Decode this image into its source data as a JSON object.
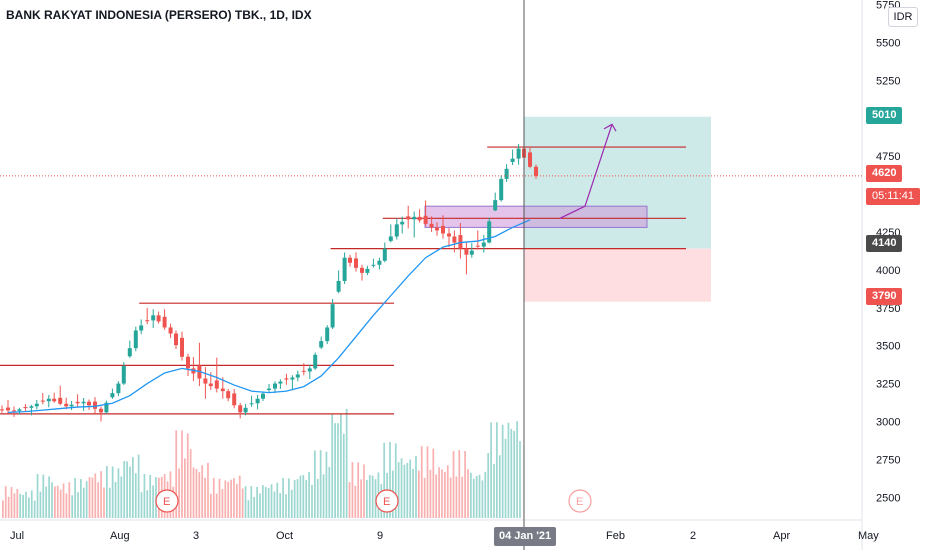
{
  "title": "BANK RAKYAT INDONESIA (PERSERO) TBK., 1D, IDX",
  "currency": "IDR",
  "colors": {
    "up": "#26a69a",
    "down": "#ef5350",
    "ma": "#2196f3",
    "level": "#c62828",
    "target_zone": "#b2dfdb",
    "stop_zone": "#ffcdd2",
    "box": "#ce93d8",
    "arrow": "#9c27b0"
  },
  "tags": {
    "target": "5010",
    "last": "4620",
    "countdown": "05:11:41",
    "entry": "4140",
    "stop": "3790",
    "cursor_date": "04 Jan '21"
  },
  "events_label": "E",
  "chart_data": {
    "type": "candlestick",
    "y_axis": {
      "ticks": [
        "5750",
        "5500",
        "5250",
        "4750",
        "4250",
        "4000",
        "3750",
        "3500",
        "3250",
        "3000",
        "2750",
        "2500"
      ],
      "ylim": [
        2350,
        5780
      ]
    },
    "x_axis": {
      "ticks": [
        "Jul",
        "Aug",
        "3",
        "Oct",
        "9",
        "Feb",
        "2",
        "Apr",
        "May"
      ]
    },
    "ohlc_weekly_approx": [
      {
        "o": 3080,
        "h": 3130,
        "l": 3030,
        "c": 3070
      },
      {
        "o": 3070,
        "h": 3120,
        "l": 3020,
        "c": 3100
      },
      {
        "o": 3100,
        "h": 3200,
        "l": 3060,
        "c": 3150
      },
      {
        "o": 3150,
        "h": 3230,
        "l": 3080,
        "c": 3100
      },
      {
        "o": 3100,
        "h": 3180,
        "l": 3050,
        "c": 3130
      },
      {
        "o": 3130,
        "h": 3160,
        "l": 3000,
        "c": 3060
      },
      {
        "o": 3060,
        "h": 3280,
        "l": 3040,
        "c": 3250
      },
      {
        "o": 3250,
        "h": 3650,
        "l": 3230,
        "c": 3600
      },
      {
        "o": 3600,
        "h": 3780,
        "l": 3550,
        "c": 3700
      },
      {
        "o": 3700,
        "h": 3750,
        "l": 3550,
        "c": 3580
      },
      {
        "o": 3580,
        "h": 3620,
        "l": 3300,
        "c": 3350
      },
      {
        "o": 3350,
        "h": 3500,
        "l": 3150,
        "c": 3250
      },
      {
        "o": 3250,
        "h": 3400,
        "l": 3150,
        "c": 3200
      },
      {
        "o": 3200,
        "h": 3230,
        "l": 3020,
        "c": 3060
      },
      {
        "o": 3060,
        "h": 3200,
        "l": 3020,
        "c": 3150
      },
      {
        "o": 3150,
        "h": 3280,
        "l": 3120,
        "c": 3250
      },
      {
        "o": 3250,
        "h": 3320,
        "l": 3180,
        "c": 3290
      },
      {
        "o": 3290,
        "h": 3400,
        "l": 3240,
        "c": 3350
      },
      {
        "o": 3350,
        "h": 3650,
        "l": 3330,
        "c": 3620
      },
      {
        "o": 3620,
        "h": 4150,
        "l": 3600,
        "c": 4080
      },
      {
        "o": 4080,
        "h": 4120,
        "l": 3930,
        "c": 3980
      },
      {
        "o": 3980,
        "h": 4100,
        "l": 3950,
        "c": 4060
      },
      {
        "o": 4060,
        "h": 4380,
        "l": 4040,
        "c": 4300
      },
      {
        "o": 4300,
        "h": 4420,
        "l": 4180,
        "c": 4350
      },
      {
        "o": 4350,
        "h": 4450,
        "l": 4250,
        "c": 4280
      },
      {
        "o": 4280,
        "h": 4350,
        "l": 4150,
        "c": 4220
      },
      {
        "o": 4220,
        "h": 4300,
        "l": 3970,
        "c": 4100
      },
      {
        "o": 4100,
        "h": 4280,
        "l": 4060,
        "c": 4180
      },
      {
        "o": 4180,
        "h": 4650,
        "l": 4170,
        "c": 4600
      },
      {
        "o": 4600,
        "h": 4860,
        "l": 4560,
        "c": 4800
      },
      {
        "o": 4800,
        "h": 4830,
        "l": 4600,
        "c": 4620
      }
    ],
    "volume_weekly_approx": [
      {
        "v": 40,
        "up": 0
      },
      {
        "v": 35,
        "up": 1
      },
      {
        "v": 55,
        "up": 1
      },
      {
        "v": 45,
        "up": 0
      },
      {
        "v": 50,
        "up": 1
      },
      {
        "v": 60,
        "up": 0
      },
      {
        "v": 65,
        "up": 1
      },
      {
        "v": 80,
        "up": 1
      },
      {
        "v": 55,
        "up": 1
      },
      {
        "v": 60,
        "up": 0
      },
      {
        "v": 110,
        "up": 0
      },
      {
        "v": 70,
        "up": 0
      },
      {
        "v": 50,
        "up": 0
      },
      {
        "v": 55,
        "up": 0
      },
      {
        "v": 40,
        "up": 1
      },
      {
        "v": 45,
        "up": 1
      },
      {
        "v": 50,
        "up": 1
      },
      {
        "v": 60,
        "up": 1
      },
      {
        "v": 85,
        "up": 1
      },
      {
        "v": 140,
        "up": 1
      },
      {
        "v": 70,
        "up": 0
      },
      {
        "v": 60,
        "up": 1
      },
      {
        "v": 95,
        "up": 1
      },
      {
        "v": 80,
        "up": 1
      },
      {
        "v": 90,
        "up": 0
      },
      {
        "v": 70,
        "up": 0
      },
      {
        "v": 85,
        "up": 0
      },
      {
        "v": 60,
        "up": 1
      },
      {
        "v": 120,
        "up": 1
      },
      {
        "v": 130,
        "up": 1
      },
      {
        "v": 60,
        "up": 0
      }
    ],
    "moving_average_approx": [
      3060,
      3065,
      3075,
      3085,
      3095,
      3100,
      3120,
      3170,
      3250,
      3320,
      3350,
      3330,
      3290,
      3240,
      3200,
      3190,
      3200,
      3230,
      3300,
      3420,
      3560,
      3700,
      3830,
      3960,
      4080,
      4150,
      4180,
      4190,
      4220,
      4280,
      4330
    ],
    "levels": [
      {
        "price": 3050,
        "from": 0,
        "to": 19
      },
      {
        "price": 3370,
        "from": 0,
        "to": 19
      },
      {
        "price": 3780,
        "from": 8,
        "to": 19
      },
      {
        "price": 4140,
        "from": 19,
        "to": 34
      },
      {
        "price": 4340,
        "from": 22,
        "to": 34
      },
      {
        "price": 4810,
        "from": 28,
        "to": 34
      }
    ],
    "zones": {
      "target": {
        "top": 5010,
        "bottom": 4140
      },
      "stop": {
        "top": 4140,
        "bottom": 3790
      },
      "box": {
        "top": 4420,
        "bottom": 4280
      }
    }
  }
}
